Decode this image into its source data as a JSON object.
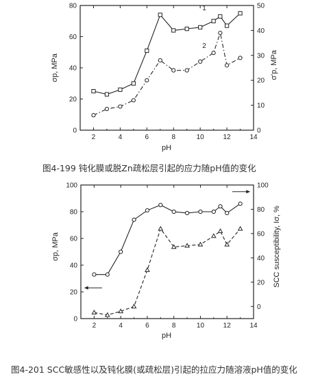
{
  "captions": {
    "top": "图4-199  钝化膜或脱Zn疏松层引起的应力随pH值的变化",
    "bottom": "图4-201  SCC敏感性以及钝化膜(或疏松层)引起的拉应力随溶液pH值的变化"
  },
  "chart_data": [
    {
      "type": "line",
      "xlabel": "pH",
      "ylabel": "σp, MPa",
      "y2label": "σ'p, MPa",
      "xlim": [
        1,
        14
      ],
      "ylim": [
        0,
        80
      ],
      "y2lim": [
        0,
        50
      ],
      "xticks": [
        "2",
        "4",
        "6",
        "8",
        "10",
        "12",
        "14"
      ],
      "yticks": [
        "0",
        "20",
        "40",
        "60",
        "80"
      ],
      "y2ticks": [
        "0",
        "10",
        "20",
        "30",
        "40",
        "50"
      ],
      "series": [
        {
          "name": "1",
          "axis": "left",
          "style": "solid",
          "marker": "square",
          "x": [
            2,
            3,
            4,
            5,
            6,
            7,
            8,
            9,
            10,
            11,
            11.5,
            12,
            13
          ],
          "y": [
            25,
            23,
            26,
            30,
            51,
            74,
            64,
            65,
            66,
            70,
            73,
            67,
            75
          ]
        },
        {
          "name": "2",
          "axis": "right",
          "style": "dash-dot",
          "marker": "circle",
          "x": [
            2,
            3,
            4,
            5,
            6,
            7,
            8,
            9,
            10,
            11,
            11.5,
            12,
            13
          ],
          "y": [
            6,
            8.5,
            9.5,
            12,
            20,
            28,
            24,
            24,
            27.5,
            31,
            39,
            26,
            29
          ]
        }
      ]
    },
    {
      "type": "line",
      "xlabel": "pH",
      "ylabel": "σp, MPa",
      "y2label": "SCC susceptibility, Iσ, %",
      "xlim": [
        1,
        14
      ],
      "ylim": [
        0,
        100
      ],
      "y2lim": [
        -10,
        100
      ],
      "xticks": [
        "2",
        "4",
        "6",
        "8",
        "10",
        "12",
        "14"
      ],
      "yticks": [
        "0",
        "20",
        "40",
        "60",
        "80",
        "100"
      ],
      "y2ticks": [
        "0",
        "20",
        "40",
        "60",
        "80",
        "100"
      ],
      "series": [
        {
          "axis": "left",
          "style": "solid",
          "marker": "circle",
          "x": [
            2,
            3,
            4,
            5,
            6,
            7,
            8,
            9,
            10,
            11,
            11.5,
            12,
            13
          ],
          "y": [
            33,
            33,
            50,
            74,
            81,
            85,
            80,
            79,
            80,
            80,
            84,
            79,
            86
          ]
        },
        {
          "axis": "right",
          "style": "dashed",
          "marker": "triangle",
          "x": [
            2,
            3,
            4,
            5,
            6,
            7,
            8,
            9,
            10,
            11,
            11.5,
            12,
            13
          ],
          "y": [
            -5,
            -7,
            -4,
            0,
            30,
            64,
            49,
            50,
            51,
            58,
            62,
            51,
            64
          ]
        }
      ]
    }
  ]
}
